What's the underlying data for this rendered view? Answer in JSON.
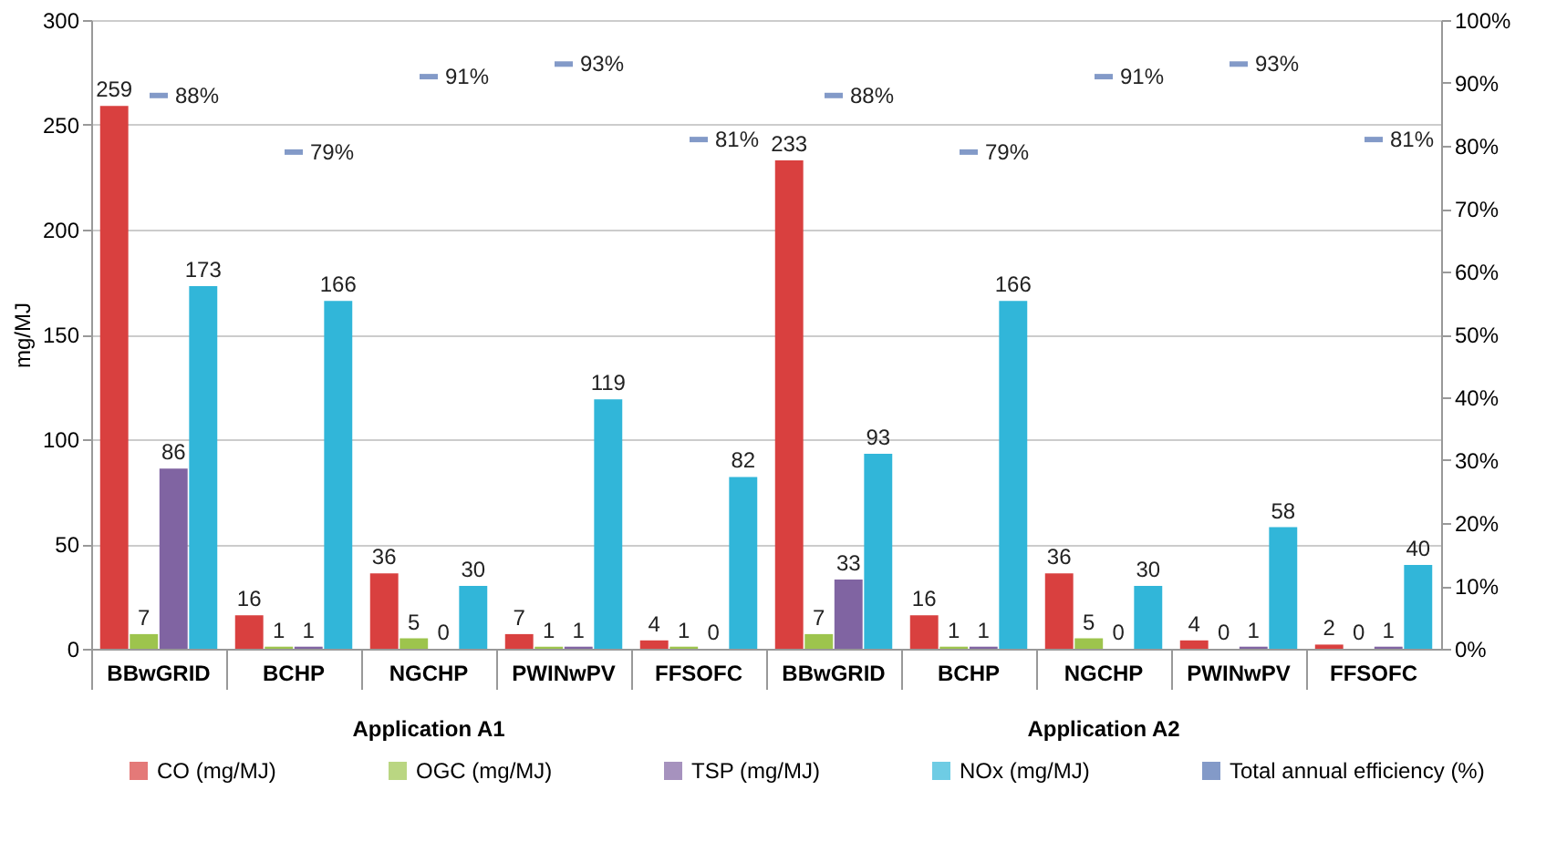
{
  "chart_data": {
    "type": "bar",
    "ylabel": "mg/MJ",
    "categories": [
      "BBwGRID",
      "BCHP",
      "NGCHP",
      "PWINwPV",
      "FFSOFC",
      "BBwGRID",
      "BCHP",
      "NGCHP",
      "PWINwPV",
      "FFSOFC"
    ],
    "series": [
      {
        "name": "CO (mg/MJ)",
        "color": "#d9403f",
        "values": [
          259,
          16,
          36,
          7,
          4,
          233,
          16,
          36,
          4,
          2
        ]
      },
      {
        "name": "OGC (mg/MJ)",
        "color": "#9dc44d",
        "values": [
          7,
          1,
          5,
          1,
          1,
          7,
          1,
          5,
          0,
          0
        ]
      },
      {
        "name": "TSP (mg/MJ)",
        "color": "#8064a2",
        "values": [
          86,
          1,
          0,
          1,
          0,
          33,
          1,
          0,
          1,
          1
        ]
      },
      {
        "name": "NOx (mg/MJ)",
        "color": "#31b6d9",
        "values": [
          173,
          166,
          30,
          119,
          82,
          93,
          166,
          30,
          58,
          40
        ]
      },
      {
        "name": "Total annual efficiency (%)",
        "type": "scatter",
        "axis": "y2",
        "color": "#4f6fb0",
        "values": [
          88,
          79,
          91,
          93,
          81,
          88,
          79,
          91,
          93,
          81
        ],
        "value_labels": [
          "88%",
          "79%",
          "91%",
          "93%",
          "81%",
          "88%",
          "79%",
          "91%",
          "93%",
          "81%"
        ]
      }
    ],
    "ylim": [
      0,
      300
    ],
    "yticks": [
      0,
      50,
      100,
      150,
      200,
      250,
      300
    ],
    "y2lim": [
      0,
      100
    ],
    "y2ticks": [
      {
        "value": 0,
        "label": "0%"
      },
      {
        "value": 10,
        "label": "10%"
      },
      {
        "value": 20,
        "label": "20%"
      },
      {
        "value": 30,
        "label": "30%"
      },
      {
        "value": 40,
        "label": "40%"
      },
      {
        "value": 50,
        "label": "50%"
      },
      {
        "value": 60,
        "label": "60%"
      },
      {
        "value": 70,
        "label": "70%"
      },
      {
        "value": 80,
        "label": "80%"
      },
      {
        "value": 90,
        "label": "90%"
      },
      {
        "value": 100,
        "label": "100%"
      }
    ],
    "data_labels": true,
    "grid": "y",
    "legend": "bottom",
    "annotations": [
      "Application A1",
      "Application A2"
    ]
  }
}
